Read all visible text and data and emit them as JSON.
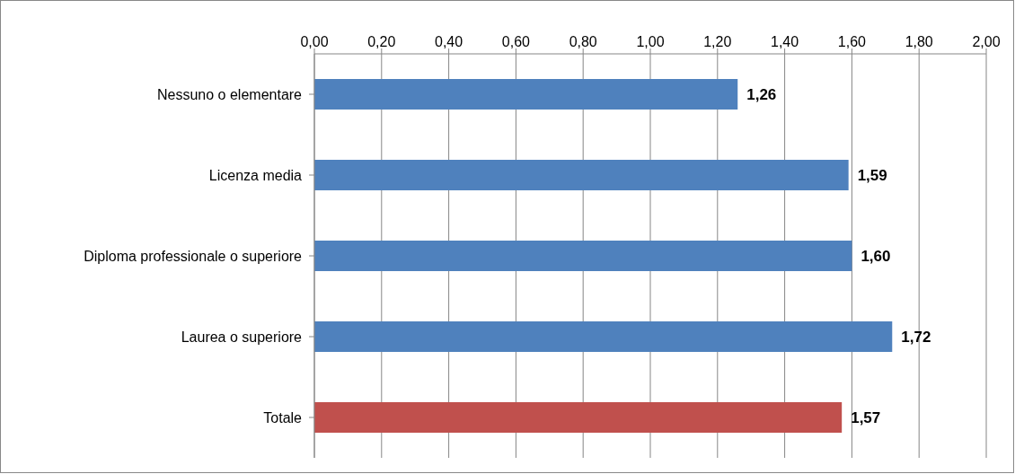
{
  "chart_data": {
    "type": "bar",
    "orientation": "horizontal",
    "categories": [
      "Nessuno o elementare",
      "Licenza media",
      "Diploma professionale o superiore",
      "Laurea o superiore",
      "Totale"
    ],
    "values": [
      1.26,
      1.59,
      1.6,
      1.72,
      1.57
    ],
    "colors": [
      "#4f81bd",
      "#4f81bd",
      "#4f81bd",
      "#4f81bd",
      "#c0504d"
    ],
    "value_labels": [
      "1,26",
      "1,59",
      "1,60",
      "1,72",
      "1,57"
    ],
    "xlim": [
      0,
      2
    ],
    "xticks": [
      {
        "value": 0,
        "label": "0,00"
      },
      {
        "value": 0.2,
        "label": "0,20"
      },
      {
        "value": 0.4,
        "label": "0,40"
      },
      {
        "value": 0.6,
        "label": "0,60"
      },
      {
        "value": 0.8,
        "label": "0,80"
      },
      {
        "value": 1,
        "label": "1,00"
      },
      {
        "value": 1.2,
        "label": "1,20"
      },
      {
        "value": 1.4,
        "label": "1,40"
      },
      {
        "value": 1.6,
        "label": "1,60"
      },
      {
        "value": 1.8,
        "label": "1,80"
      },
      {
        "value": 2,
        "label": "2,00"
      }
    ],
    "grid": "x"
  }
}
